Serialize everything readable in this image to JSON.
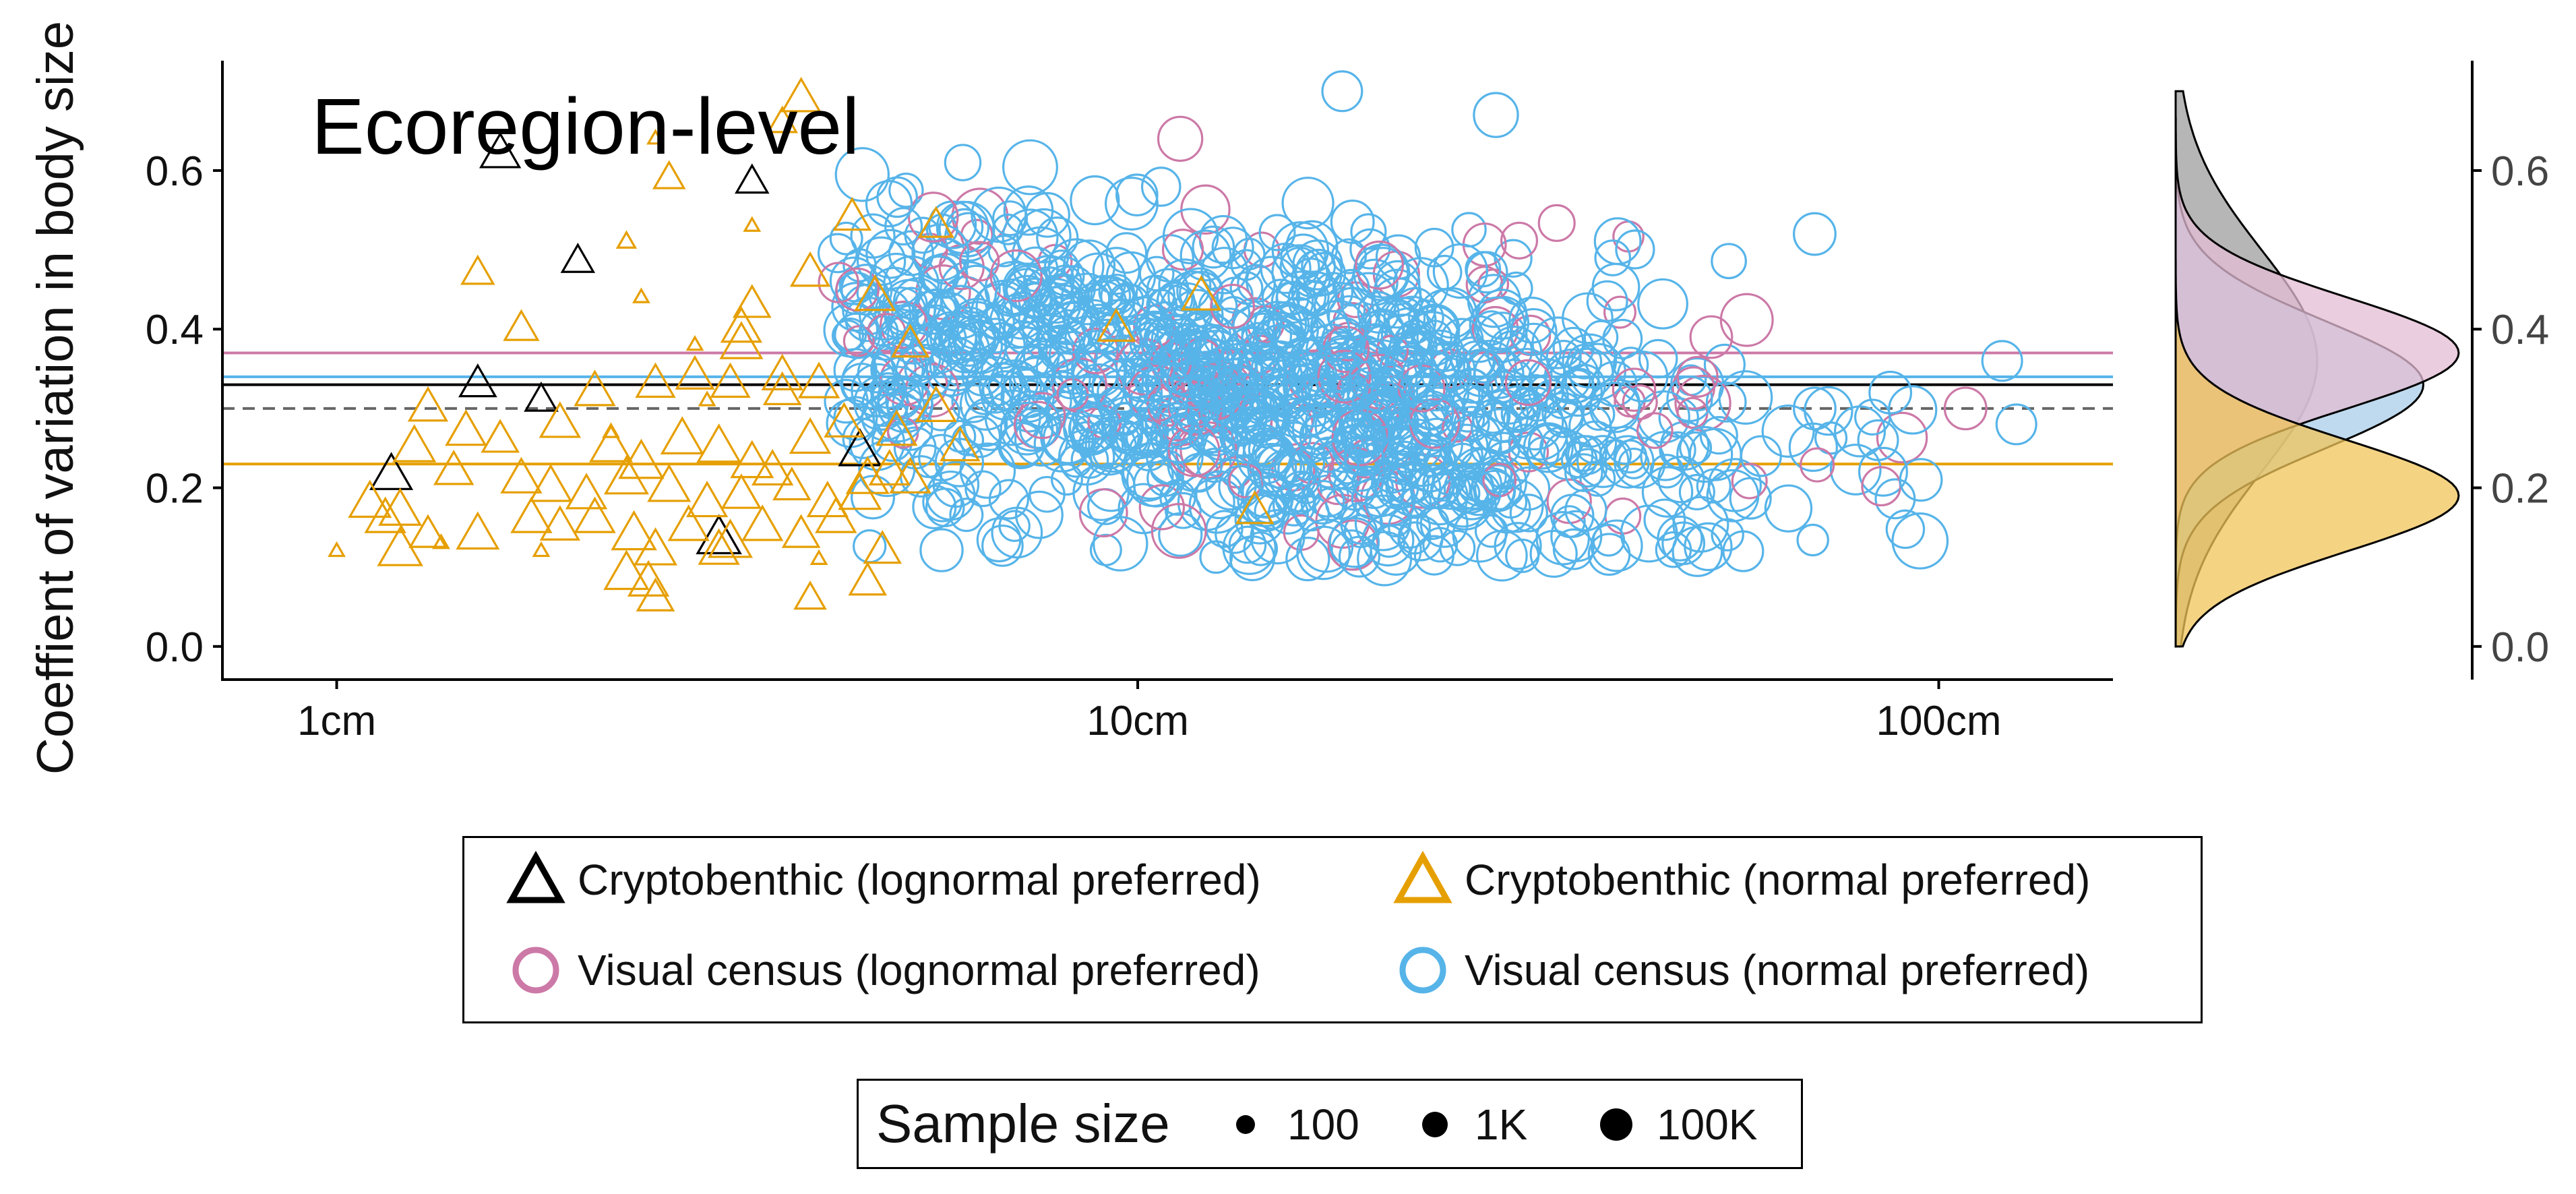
{
  "chart_data": {
    "type": "scatter",
    "annotation": "Ecoregion-level",
    "ylabel": "Coeffient of variation in body size",
    "xlabel": "",
    "x_scale": "log",
    "x_unit": "cm",
    "xlim": [
      0.72,
      165
    ],
    "ylim": [
      -0.035,
      0.73
    ],
    "x_ticks": [
      {
        "value": 1,
        "label": "1cm"
      },
      {
        "value": 10,
        "label": "10cm"
      },
      {
        "value": 100,
        "label": "100cm"
      }
    ],
    "y_ticks": [
      {
        "value": 0.0,
        "label": "0.0"
      },
      {
        "value": 0.2,
        "label": "0.2"
      },
      {
        "value": 0.4,
        "label": "0.4"
      },
      {
        "value": 0.6,
        "label": "0.6"
      }
    ],
    "grid": false,
    "reference_lines": [
      {
        "series": "Visual census (lognormal preferred)",
        "y": 0.37,
        "color": "#CC79A7",
        "style": "solid"
      },
      {
        "series": "Visual census (normal preferred)",
        "y": 0.34,
        "color": "#56B4E9",
        "style": "solid"
      },
      {
        "series": "Cryptobenthic (lognormal preferred)",
        "y": 0.33,
        "color": "#000000",
        "style": "solid"
      },
      {
        "series": "overall",
        "y": 0.3,
        "color": "#666666",
        "style": "dashed"
      },
      {
        "series": "Cryptobenthic (normal preferred)",
        "y": 0.23,
        "color": "#E69F00",
        "style": "solid"
      }
    ],
    "series": [
      {
        "name": "Cryptobenthic (lognormal preferred)",
        "marker": "triangle",
        "color": "#000000",
        "points": [
          {
            "x": 1.6,
            "y": 0.62,
            "n": 2000
          },
          {
            "x": 3.3,
            "y": 0.585,
            "n": 400
          },
          {
            "x": 2.0,
            "y": 0.485,
            "n": 400
          },
          {
            "x": 1.5,
            "y": 0.33,
            "n": 1000
          },
          {
            "x": 1.8,
            "y": 0.31,
            "n": 400
          },
          {
            "x": 4.5,
            "y": 0.245,
            "n": 3000
          },
          {
            "x": 1.17,
            "y": 0.215,
            "n": 3000
          },
          {
            "x": 3.0,
            "y": 0.135,
            "n": 5000
          }
        ]
      },
      {
        "name": "Cryptobenthic (normal preferred)",
        "marker": "triangle",
        "color": "#E69F00",
        "points": [
          {
            "x": 3.8,
            "y": 0.69,
            "n": 1500
          },
          {
            "x": 3.6,
            "y": 0.66,
            "n": 200
          },
          {
            "x": 2.6,
            "y": 0.59,
            "n": 300
          },
          {
            "x": 2.5,
            "y": 0.64,
            "n": 10
          },
          {
            "x": 3.3,
            "y": 0.43,
            "n": 1000
          },
          {
            "x": 1.5,
            "y": 0.47,
            "n": 400
          },
          {
            "x": 1.7,
            "y": 0.4,
            "n": 600
          },
          {
            "x": 2.3,
            "y": 0.51,
            "n": 20
          },
          {
            "x": 2.8,
            "y": 0.38,
            "n": 10
          },
          {
            "x": 3.2,
            "y": 0.4,
            "n": 2000
          },
          {
            "x": 3.9,
            "y": 0.47,
            "n": 1500
          },
          {
            "x": 4.4,
            "y": 0.54,
            "n": 1000
          },
          {
            "x": 4.7,
            "y": 0.44,
            "n": 2000
          },
          {
            "x": 5.2,
            "y": 0.38,
            "n": 1000
          },
          {
            "x": 5.6,
            "y": 0.53,
            "n": 600
          },
          {
            "x": 2.1,
            "y": 0.32,
            "n": 2000
          },
          {
            "x": 2.5,
            "y": 0.33,
            "n": 1500
          },
          {
            "x": 2.8,
            "y": 0.34,
            "n": 1200
          },
          {
            "x": 3.1,
            "y": 0.33,
            "n": 1500
          },
          {
            "x": 3.6,
            "y": 0.32,
            "n": 1000
          },
          {
            "x": 4.0,
            "y": 0.33,
            "n": 2000
          },
          {
            "x": 1.3,
            "y": 0.3,
            "n": 1500
          },
          {
            "x": 1.45,
            "y": 0.27,
            "n": 2000
          },
          {
            "x": 1.6,
            "y": 0.26,
            "n": 1000
          },
          {
            "x": 1.9,
            "y": 0.28,
            "n": 2000
          },
          {
            "x": 2.2,
            "y": 0.25,
            "n": 3000
          },
          {
            "x": 2.4,
            "y": 0.23,
            "n": 5000
          },
          {
            "x": 2.7,
            "y": 0.26,
            "n": 3000
          },
          {
            "x": 3.0,
            "y": 0.25,
            "n": 4000
          },
          {
            "x": 3.3,
            "y": 0.23,
            "n": 3000
          },
          {
            "x": 3.5,
            "y": 0.22,
            "n": 2000
          },
          {
            "x": 3.9,
            "y": 0.26,
            "n": 2000
          },
          {
            "x": 4.3,
            "y": 0.28,
            "n": 1500
          },
          {
            "x": 1.25,
            "y": 0.25,
            "n": 3000
          },
          {
            "x": 1.4,
            "y": 0.22,
            "n": 1500
          },
          {
            "x": 1.7,
            "y": 0.21,
            "n": 2000
          },
          {
            "x": 1.85,
            "y": 0.2,
            "n": 3000
          },
          {
            "x": 2.05,
            "y": 0.19,
            "n": 2000
          },
          {
            "x": 2.3,
            "y": 0.21,
            "n": 4000
          },
          {
            "x": 2.6,
            "y": 0.2,
            "n": 3000
          },
          {
            "x": 2.9,
            "y": 0.18,
            "n": 2000
          },
          {
            "x": 3.2,
            "y": 0.19,
            "n": 1500
          },
          {
            "x": 3.7,
            "y": 0.2,
            "n": 1000
          },
          {
            "x": 4.1,
            "y": 0.18,
            "n": 2000
          },
          {
            "x": 4.6,
            "y": 0.21,
            "n": 3000
          },
          {
            "x": 4.9,
            "y": 0.22,
            "n": 2000
          },
          {
            "x": 1.1,
            "y": 0.18,
            "n": 3000
          },
          {
            "x": 1.15,
            "y": 0.16,
            "n": 2000
          },
          {
            "x": 1.2,
            "y": 0.17,
            "n": 3000
          },
          {
            "x": 1.3,
            "y": 0.14,
            "n": 1000
          },
          {
            "x": 1.5,
            "y": 0.14,
            "n": 3000
          },
          {
            "x": 1.75,
            "y": 0.16,
            "n": 2000
          },
          {
            "x": 1.9,
            "y": 0.15,
            "n": 1500
          },
          {
            "x": 2.1,
            "y": 0.16,
            "n": 2000
          },
          {
            "x": 2.35,
            "y": 0.14,
            "n": 5000
          },
          {
            "x": 2.5,
            "y": 0.12,
            "n": 3000
          },
          {
            "x": 2.75,
            "y": 0.15,
            "n": 2000
          },
          {
            "x": 3.1,
            "y": 0.13,
            "n": 4000
          },
          {
            "x": 3.4,
            "y": 0.15,
            "n": 2000
          },
          {
            "x": 3.8,
            "y": 0.14,
            "n": 1000
          },
          {
            "x": 4.2,
            "y": 0.16,
            "n": 2000
          },
          {
            "x": 4.5,
            "y": 0.19,
            "n": 3000
          },
          {
            "x": 1.2,
            "y": 0.12,
            "n": 5000
          },
          {
            "x": 2.3,
            "y": 0.09,
            "n": 5000
          },
          {
            "x": 2.45,
            "y": 0.08,
            "n": 2000
          },
          {
            "x": 3.0,
            "y": 0.12,
            "n": 2000
          },
          {
            "x": 4.6,
            "y": 0.08,
            "n": 1000
          },
          {
            "x": 4.8,
            "y": 0.12,
            "n": 1000
          },
          {
            "x": 3.9,
            "y": 0.06,
            "n": 300
          },
          {
            "x": 2.5,
            "y": 0.06,
            "n": 1000
          },
          {
            "x": 3.2,
            "y": 0.38,
            "n": 3000
          },
          {
            "x": 3.6,
            "y": 0.34,
            "n": 2000
          },
          {
            "x": 5.6,
            "y": 0.3,
            "n": 2000
          },
          {
            "x": 6.0,
            "y": 0.25,
            "n": 1500
          },
          {
            "x": 5.2,
            "y": 0.21,
            "n": 2000
          },
          {
            "x": 5.0,
            "y": 0.27,
            "n": 2000
          },
          {
            "x": 9.4,
            "y": 0.4,
            "n": 1000
          },
          {
            "x": 12.0,
            "y": 0.44,
            "n": 1500
          },
          {
            "x": 14.0,
            "y": 0.17,
            "n": 1000
          },
          {
            "x": 1.0,
            "y": 0.12,
            "n": 10
          },
          {
            "x": 1.35,
            "y": 0.13,
            "n": 10
          },
          {
            "x": 1.8,
            "y": 0.12,
            "n": 10
          },
          {
            "x": 2.2,
            "y": 0.27,
            "n": 10
          },
          {
            "x": 2.9,
            "y": 0.31,
            "n": 10
          },
          {
            "x": 3.3,
            "y": 0.53,
            "n": 10
          },
          {
            "x": 2.4,
            "y": 0.44,
            "n": 10
          },
          {
            "x": 4.0,
            "y": 0.11,
            "n": 10
          }
        ]
      },
      {
        "name": "Visual census (lognormal preferred)",
        "marker": "circle",
        "color": "#CC79A7"
      },
      {
        "name": "Visual census (normal preferred)",
        "marker": "circle",
        "color": "#56B4E9"
      }
    ],
    "visual_census_cloud": {
      "note": "Dense point cloud of ecoregion-level visual census samples",
      "x_range": [
        4.2,
        95
      ],
      "x_center": 14,
      "y_center": 0.33,
      "y_spread": 0.1,
      "count": 1100,
      "lognormal_fraction": 0.1
    },
    "visual_census_outliers": [
      {
        "x": 70,
        "y": 0.52,
        "n": 3000
      },
      {
        "x": 120,
        "y": 0.36,
        "n": 2000
      },
      {
        "x": 125,
        "y": 0.28,
        "n": 2000
      },
      {
        "x": 95,
        "y": 0.21,
        "n": 3000
      },
      {
        "x": 87,
        "y": 0.32,
        "n": 3000
      },
      {
        "x": 70,
        "y": 0.3,
        "n": 3000
      },
      {
        "x": 60,
        "y": 0.24,
        "n": 2000
      },
      {
        "x": 57,
        "y": 0.12,
        "n": 2000
      },
      {
        "x": 48,
        "y": 0.13,
        "n": 3000
      },
      {
        "x": 84,
        "y": 0.26,
        "n": 2000
      },
      {
        "x": 28,
        "y": 0.67,
        "n": 5000
      },
      {
        "x": 18,
        "y": 0.7,
        "n": 2000
      }
    ],
    "visual_census_lognormal_outliers": [
      {
        "x": 108,
        "y": 0.3,
        "n": 3000
      },
      {
        "x": 52,
        "y": 0.39,
        "n": 3000
      },
      {
        "x": 50,
        "y": 0.34,
        "n": 2000
      },
      {
        "x": 11.3,
        "y": 0.64,
        "n": 5000
      }
    ],
    "marginal_density": {
      "orientation": "vertical",
      "shares_y_axis": true,
      "y_ticks": [
        "0.0",
        "0.2",
        "0.4",
        "0.6"
      ],
      "curves": [
        {
          "series": "Cryptobenthic (lognormal preferred)",
          "fill": "#9E9E9E",
          "peak_y": 0.36,
          "sd": 0.14
        },
        {
          "series": "Visual census (normal preferred)",
          "fill": "#A9CEE8",
          "peak_y": 0.33,
          "sd": 0.08
        },
        {
          "series": "Visual census (lognormal preferred)",
          "fill": "#E3BCD3",
          "peak_y": 0.37,
          "sd": 0.07
        },
        {
          "series": "Cryptobenthic (normal preferred)",
          "fill": "#F0C45A",
          "peak_y": 0.19,
          "sd": 0.07
        }
      ]
    }
  },
  "legend": {
    "items": [
      {
        "label": "Cryptobenthic (lognormal preferred)",
        "marker": "triangle",
        "color": "#000000"
      },
      {
        "label": "Cryptobenthic (normal preferred)",
        "marker": "triangle",
        "color": "#E69F00"
      },
      {
        "label": "Visual census (lognormal preferred)",
        "marker": "circle",
        "color": "#CC79A7"
      },
      {
        "label": "Visual census (normal preferred)",
        "marker": "circle",
        "color": "#56B4E9"
      }
    ]
  },
  "size_legend": {
    "title": "Sample size",
    "items": [
      {
        "label": "100"
      },
      {
        "label": "1K"
      },
      {
        "label": "100K"
      }
    ]
  }
}
